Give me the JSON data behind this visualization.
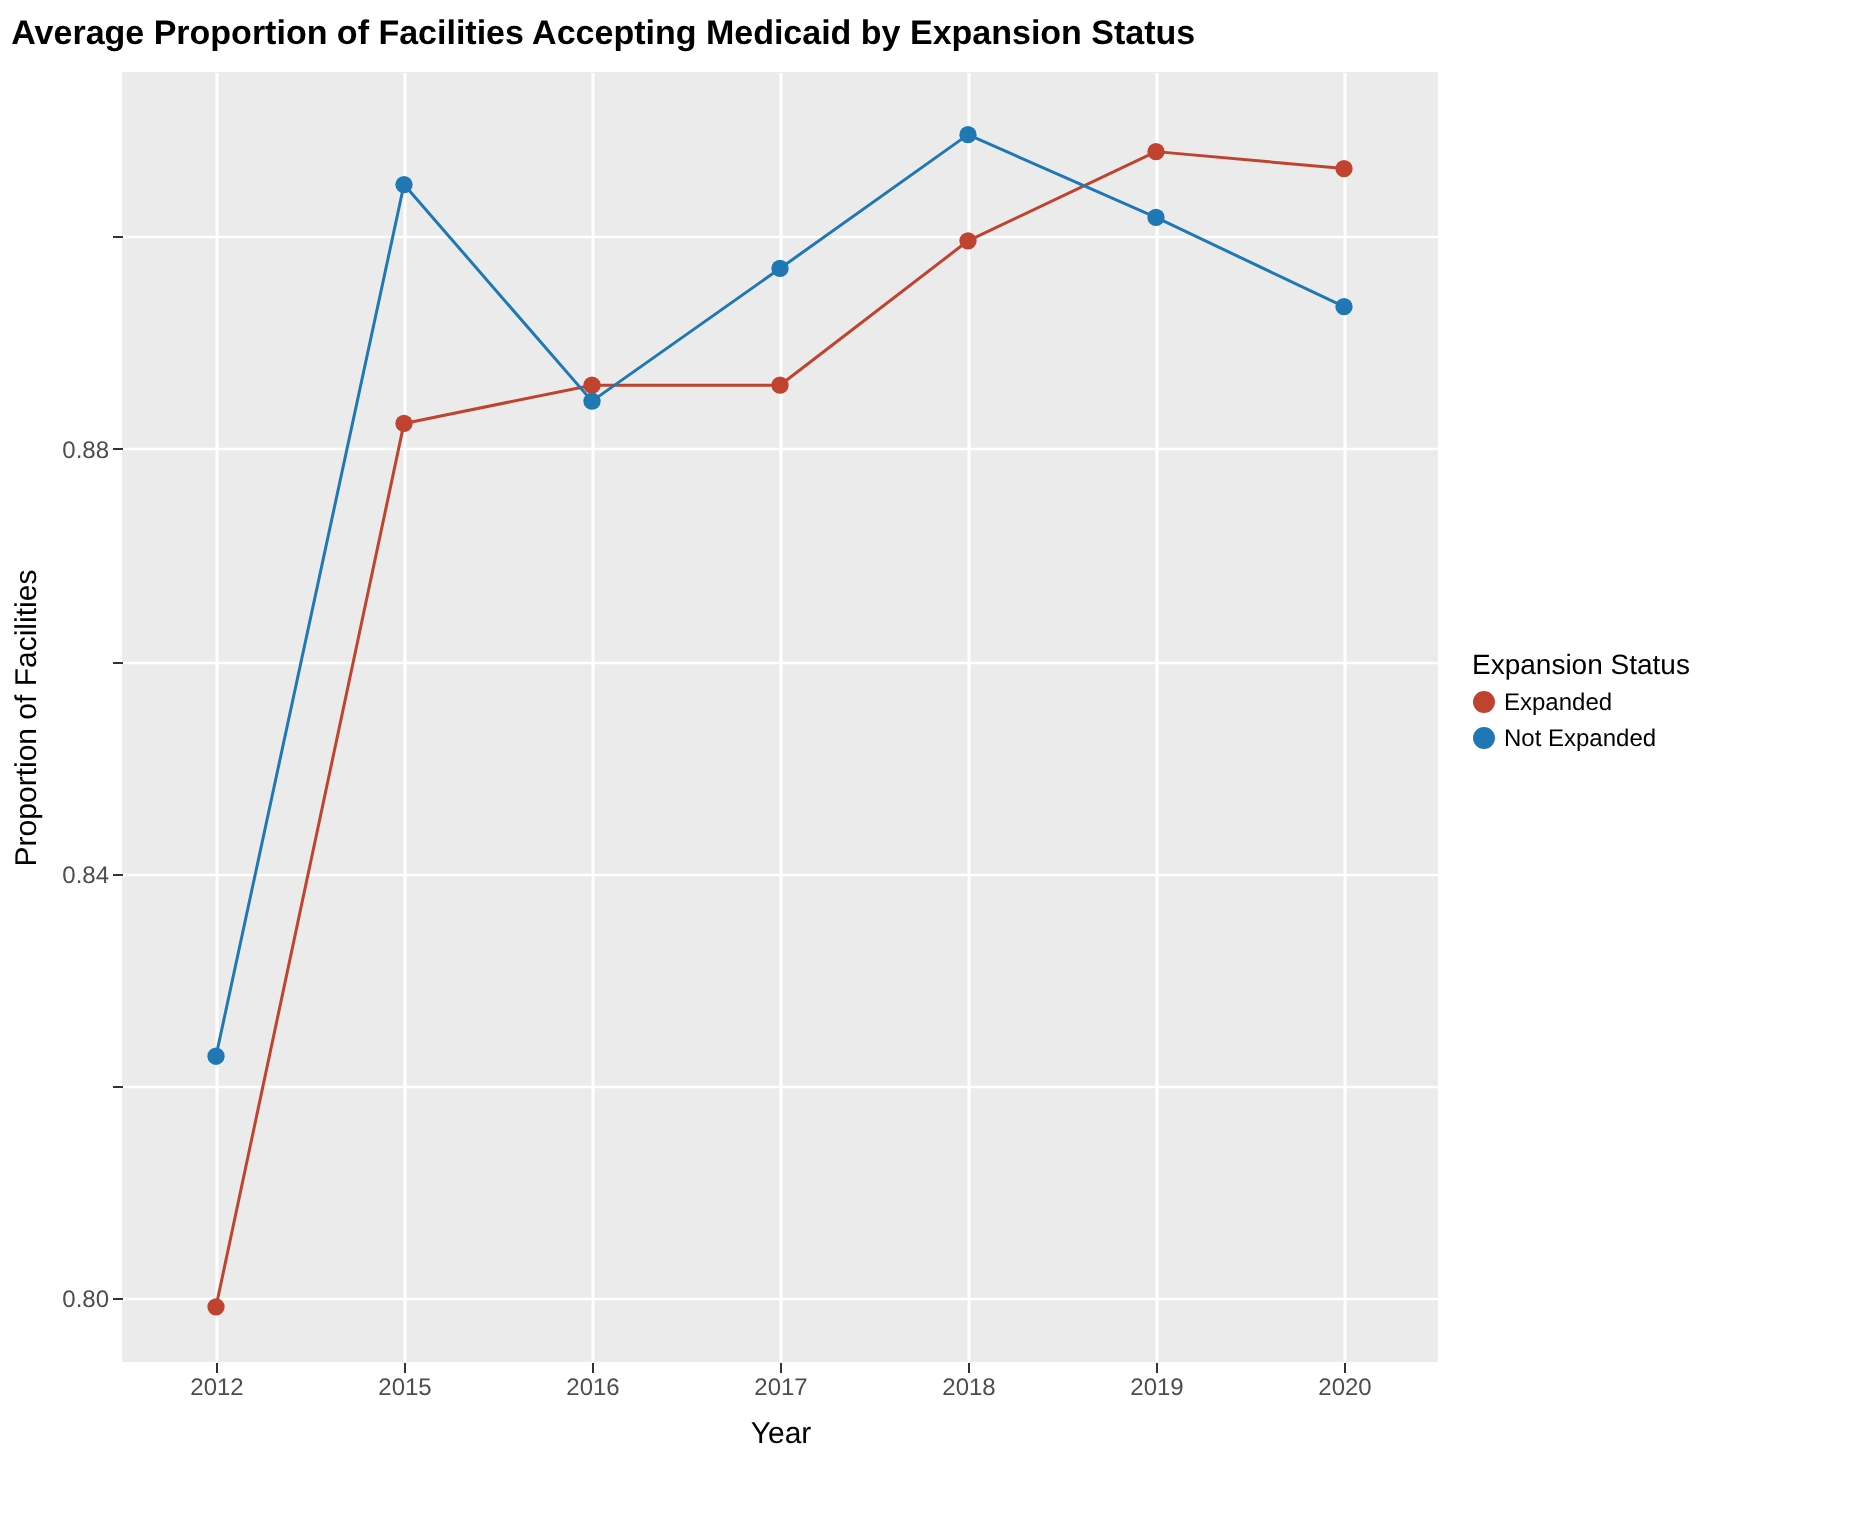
{
  "chart_data": {
    "type": "line",
    "title": "Average Proportion of Facilities Accepting Medicaid by Expansion Status",
    "xlabel": "Year",
    "ylabel": "Proportion of Facilities",
    "legend_title": "Expansion Status",
    "categories": [
      "2012",
      "2015",
      "2016",
      "2017",
      "2018",
      "2019",
      "2020"
    ],
    "series": [
      {
        "name": "Expanded",
        "color": "#c0432f",
        "values": [
          0.7992,
          0.8824,
          0.886,
          0.886,
          0.8996,
          0.908,
          0.9064
        ]
      },
      {
        "name": "Not Expanded",
        "color": "#1f78b4",
        "values": [
          0.8228,
          0.9049,
          0.8845,
          0.897,
          0.9096,
          0.9018,
          0.8934
        ]
      }
    ],
    "ylim": [
      0.794,
      0.9155
    ],
    "yticks": [
      {
        "value": 0.8,
        "label": "0.80"
      },
      {
        "value": 0.82,
        "label": null
      },
      {
        "value": 0.84,
        "label": "0.84"
      },
      {
        "value": 0.86,
        "label": null
      },
      {
        "value": 0.88,
        "label": "0.88"
      },
      {
        "value": 0.9,
        "label": null
      }
    ],
    "grid": true,
    "legend": "right",
    "marker": "circle",
    "line_style": "solid"
  }
}
